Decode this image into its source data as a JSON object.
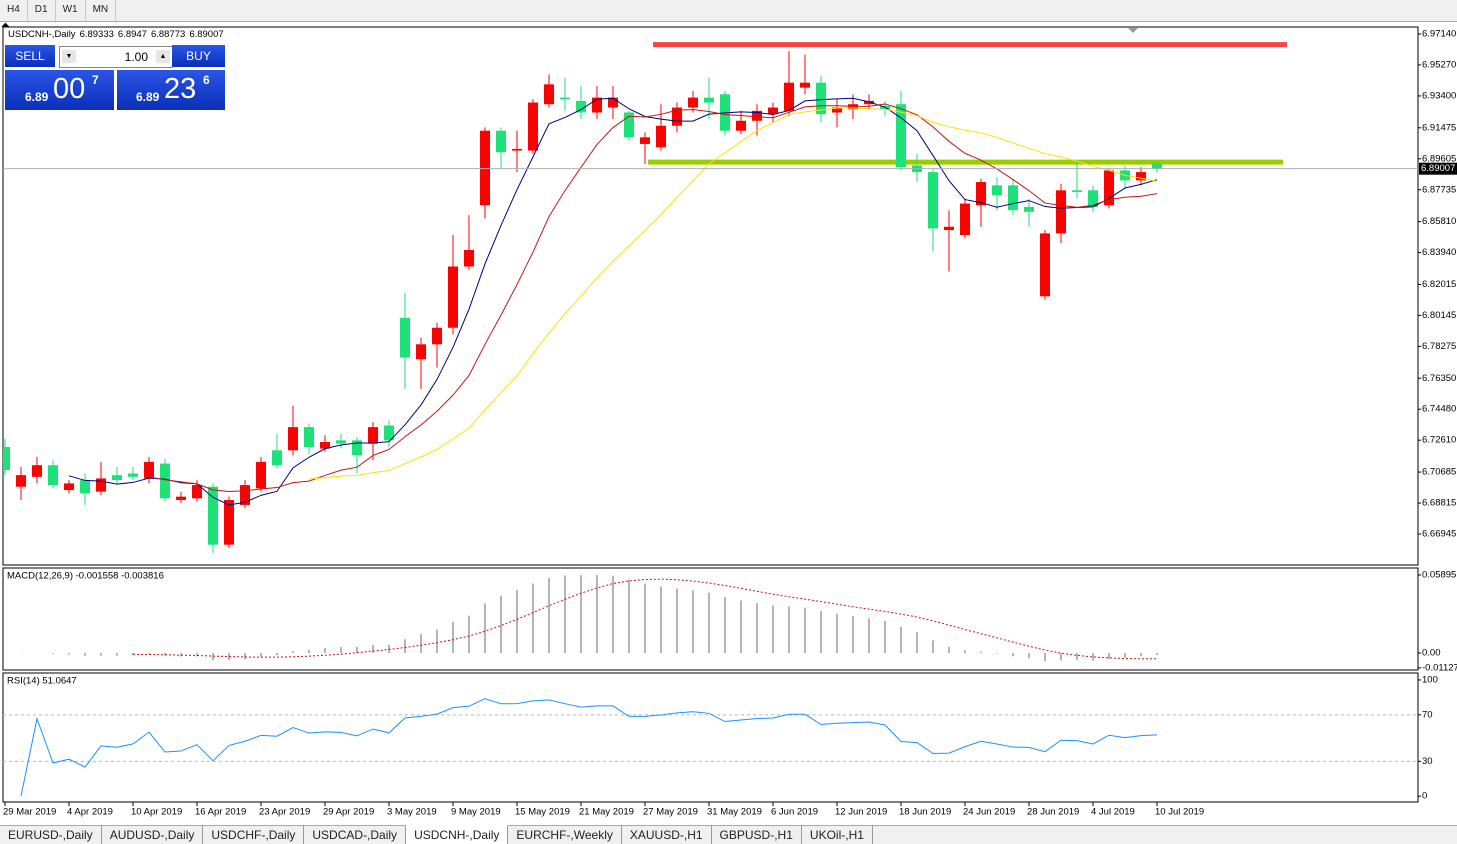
{
  "toolbar": {
    "periods": [
      "H4",
      "D1",
      "W1",
      "MN"
    ]
  },
  "trade_panel": {
    "sell_label": "SELL",
    "buy_label": "BUY",
    "lot": "1.00",
    "sell_quote": {
      "big": "6.89",
      "pips": "00",
      "frac": "7"
    },
    "buy_quote": {
      "big": "6.89",
      "pips": "23",
      "frac": "6"
    }
  },
  "chart_data": {
    "type": "candlestick",
    "symbol": "USDCNH-,Daily",
    "up_color": "#ff0000",
    "down_color": "#1de27a",
    "ma_colors": [
      "#000080",
      "#c01818",
      "#ffe000"
    ],
    "x_labels": [
      "29 Mar 2019",
      "4 Apr 2019",
      "10 Apr 2019",
      "16 Apr 2019",
      "23 Apr 2019",
      "29 Apr 2019",
      "3 May 2019",
      "9 May 2019",
      "15 May 2019",
      "21 May 2019",
      "27 May 2019",
      "31 May 2019",
      "6 Jun 2019",
      "12 Jun 2019",
      "18 Jun 2019",
      "24 Jun 2019",
      "28 Jun 2019",
      "4 Jul 2019",
      "10 Jul 2019"
    ],
    "candles": {
      "open": [
        6.722,
        6.698,
        6.704,
        6.711,
        6.696,
        6.702,
        6.695,
        6.705,
        6.706,
        6.703,
        6.712,
        6.69,
        6.691,
        6.698,
        6.663,
        6.687,
        6.697,
        6.72,
        6.72,
        6.734,
        6.721,
        6.726,
        6.726,
        6.724,
        6.735,
        6.8,
        6.775,
        6.784,
        6.794,
        6.831,
        6.868,
        6.913,
        6.901,
        6.901,
        6.929,
        6.933,
        6.931,
        6.924,
        6.927,
        6.924,
        6.905,
        6.903,
        6.916,
        6.927,
        6.933,
        6.935,
        6.913,
        6.919,
        6.923,
        6.925,
        6.939,
        6.942,
        6.924,
        6.926,
        6.929,
        6.928,
        6.929,
        6.892,
        6.888,
        6.853,
        6.85,
        6.868,
        6.88,
        6.88,
        6.867,
        6.813,
        6.851,
        6.877,
        6.877,
        6.868,
        6.889,
        6.883,
        6.89333
      ],
      "high": [
        6.727,
        6.71,
        6.716,
        6.714,
        6.702,
        6.706,
        6.713,
        6.71,
        6.71,
        6.716,
        6.715,
        6.695,
        6.702,
        6.7,
        6.692,
        6.702,
        6.716,
        6.73,
        6.747,
        6.736,
        6.729,
        6.73,
        6.728,
        6.737,
        6.738,
        6.815,
        6.788,
        6.797,
        6.85,
        6.862,
        6.915,
        6.915,
        6.913,
        6.932,
        6.947,
        6.945,
        6.94,
        6.94,
        6.94,
        6.925,
        6.912,
        6.929,
        6.93,
        6.937,
        6.945,
        6.937,
        6.925,
        6.929,
        6.93,
        6.961,
        6.959,
        6.946,
        6.932,
        6.935,
        6.935,
        6.931,
        6.937,
        6.899,
        6.89,
        6.865,
        6.872,
        6.884,
        6.885,
        6.884,
        6.872,
        6.853,
        6.881,
        6.895,
        6.88,
        6.89,
        6.892,
        6.891,
        6.8947
      ],
      "low": [
        6.705,
        6.69,
        6.7,
        6.697,
        6.694,
        6.687,
        6.693,
        6.7,
        6.702,
        6.7,
        6.689,
        6.688,
        6.689,
        6.658,
        6.661,
        6.685,
        6.695,
        6.709,
        6.717,
        6.718,
        6.719,
        6.721,
        6.706,
        6.714,
        6.722,
        6.757,
        6.757,
        6.77,
        6.79,
        6.829,
        6.86,
        6.89,
        6.888,
        6.899,
        6.927,
        6.925,
        6.92,
        6.92,
        6.92,
        6.907,
        6.893,
        6.901,
        6.912,
        6.924,
        6.92,
        6.91,
        6.911,
        6.91,
        6.918,
        6.922,
        6.935,
        6.918,
        6.915,
        6.92,
        6.926,
        6.922,
        6.889,
        6.882,
        6.84,
        6.828,
        6.848,
        6.855,
        6.865,
        6.862,
        6.855,
        6.811,
        6.845,
        6.872,
        6.864,
        6.866,
        6.878,
        6.88,
        6.88773
      ],
      "close": [
        6.708,
        6.705,
        6.711,
        6.699,
        6.7,
        6.694,
        6.703,
        6.702,
        6.704,
        6.713,
        6.691,
        6.692,
        6.699,
        6.663,
        6.69,
        6.699,
        6.713,
        6.711,
        6.734,
        6.722,
        6.725,
        6.724,
        6.717,
        6.734,
        6.726,
        6.776,
        6.784,
        6.794,
        6.831,
        6.841,
        6.913,
        6.9,
        6.902,
        6.93,
        6.941,
        6.932,
        6.924,
        6.933,
        6.933,
        6.909,
        6.909,
        6.916,
        6.927,
        6.933,
        6.93,
        6.913,
        6.919,
        6.925,
        6.927,
        6.942,
        6.942,
        6.923,
        6.927,
        6.929,
        6.931,
        6.926,
        6.891,
        6.888,
        6.854,
        6.855,
        6.869,
        6.882,
        6.874,
        6.865,
        6.864,
        6.851,
        6.877,
        6.876,
        6.867,
        6.889,
        6.883,
        6.888,
        6.89007
      ]
    },
    "levels": [
      {
        "price": 6.965,
        "color": "#f44444"
      },
      {
        "price": 6.894,
        "color": "#9acd00"
      }
    ],
    "ylim": [
      6.65073,
      6.97563
    ],
    "yticks": [
      {
        "value": 6.9714,
        "label": "6.97140"
      },
      {
        "value": 6.9527,
        "label": "6.95270"
      },
      {
        "value": 6.934,
        "label": "6.93400"
      },
      {
        "value": 6.91475,
        "label": "6.91475"
      },
      {
        "value": 6.89605,
        "label": "6.89605"
      },
      {
        "value": 6.87735,
        "label": "6.87735"
      },
      {
        "value": 6.8581,
        "label": "6.85810"
      },
      {
        "value": 6.8394,
        "label": "6.83940"
      },
      {
        "value": 6.82015,
        "label": "6.82015"
      },
      {
        "value": 6.80145,
        "label": "6.80145"
      },
      {
        "value": 6.78275,
        "label": "6.78275"
      },
      {
        "value": 6.7635,
        "label": "6.76350"
      },
      {
        "value": 6.7448,
        "label": "6.74480"
      },
      {
        "value": 6.7261,
        "label": "6.72610"
      },
      {
        "value": 6.70685,
        "label": "6.70685"
      },
      {
        "value": 6.68815,
        "label": "6.68815"
      },
      {
        "value": 6.66945,
        "label": "6.66945"
      }
    ],
    "macd": {
      "title": "MACD(12,26,9) -0.001558 -0.003816",
      "ylim": [
        -0.01285,
        0.06424
      ],
      "yticks": [
        0.05895,
        {
          "value": 0,
          "label": "0.00"
        },
        -0.01127
      ],
      "hist_color": "#b4b4b4",
      "signal_color": "#d01010"
    },
    "rsi": {
      "title": "RSI(14) 51.0647",
      "ylim": [
        -5,
        106
      ],
      "yticks": [
        100,
        70,
        30,
        0
      ],
      "levels": [
        70,
        30
      ],
      "color": "#1e90ff"
    }
  },
  "tabs": {
    "items": [
      "EURUSD-,Daily",
      "AUDUSD-,Daily",
      "USDCHF-,Daily",
      "USDCAD-,Daily",
      "USDCNH-,Daily",
      "EURCHF-,Weekly",
      "XAUUSD-,H1",
      "GBPUSD-,H1",
      "UKOil-,H1"
    ],
    "active": 4
  }
}
